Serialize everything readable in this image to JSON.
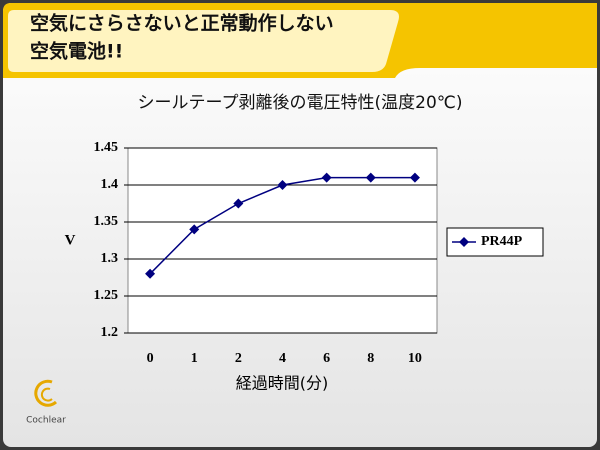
{
  "header": {
    "lines": [
      "空気にさらさないと正常動作しない",
      "空気電池!!"
    ]
  },
  "logo": {
    "text": "Cochlear"
  },
  "chart_data": {
    "type": "line",
    "title": "シールテープ剥離後の電圧特性(温度20℃)",
    "x_label": "経過時間(分)",
    "y_label": "V",
    "categories": [
      "0",
      "1",
      "2",
      "4",
      "6",
      "8",
      "10"
    ],
    "series": [
      {
        "name": "PR44P",
        "color": "#000080",
        "values": [
          1.28,
          1.34,
          1.375,
          1.4,
          1.41,
          1.41,
          1.41
        ]
      }
    ],
    "ylim": [
      1.2,
      1.45
    ],
    "yticks": [
      1.2,
      1.25,
      1.3,
      1.35,
      1.4,
      1.45
    ],
    "grid": true,
    "legend": "right"
  }
}
